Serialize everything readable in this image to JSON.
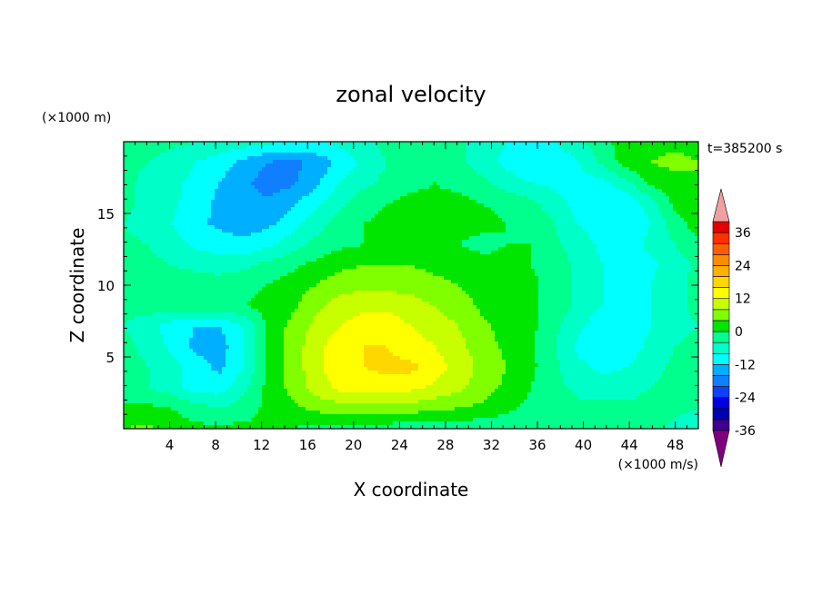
{
  "chart_data": {
    "type": "heatmap",
    "title": "zonal velocity",
    "xlabel": "X coordinate",
    "ylabel": "Z coordinate",
    "x_unit": "(×1000 m/s)",
    "y_unit": "(×1000 m)",
    "time_label": "t=385200 s",
    "xlim": [
      0,
      50
    ],
    "ylim": [
      0,
      20
    ],
    "x_ticks": [
      4,
      8,
      12,
      16,
      20,
      24,
      28,
      32,
      36,
      40,
      44,
      48
    ],
    "y_ticks": [
      5,
      10,
      15
    ],
    "colorbar": {
      "levels": [
        -40,
        -36,
        -32,
        -28,
        -24,
        -20,
        -16,
        -12,
        -8,
        -4,
        0,
        4,
        8,
        12,
        16,
        20,
        24,
        28,
        32,
        36,
        40
      ],
      "tick_labels": [
        36,
        24,
        12,
        0,
        -12,
        -24,
        -36
      ],
      "colors": [
        "#7f007f",
        "#3f008f",
        "#0000b0",
        "#0000e0",
        "#0f3fff",
        "#0f7fff",
        "#00afff",
        "#00ffff",
        "#00ffc8",
        "#00ff8c",
        "#00e600",
        "#7fff00",
        "#c8ff00",
        "#ffff00",
        "#ffd700",
        "#ffaf00",
        "#ff8c00",
        "#ff5f00",
        "#ff2f00",
        "#e60000",
        "#f0a0a0"
      ],
      "extend": "both"
    },
    "grid": false,
    "field": [
      [
        4,
        5,
        2,
        1,
        1,
        1,
        1,
        0,
        -1,
        -1,
        -2,
        -2,
        -3,
        -2,
        -2,
        -3,
        -3,
        -3,
        -3,
        -4,
        -3,
        -2,
        -3,
        -5,
        -6
      ],
      [
        1,
        1,
        0,
        -2,
        -4,
        -2,
        1,
        3,
        5,
        6,
        6,
        6,
        6,
        5,
        4,
        3,
        1,
        -1,
        -2,
        -3,
        -3,
        -3,
        -2,
        -3,
        -4
      ],
      [
        -2,
        -4,
        -6,
        -10,
        -10,
        -5,
        1,
        5,
        10,
        13,
        14,
        14,
        13,
        11,
        9,
        6,
        3,
        0,
        -3,
        -5,
        -6,
        -6,
        -4,
        -2,
        -3
      ],
      [
        -2,
        -4,
        -6,
        -10,
        -13,
        -8,
        1,
        5,
        11,
        14,
        16,
        17,
        17,
        14,
        10,
        7,
        4,
        1,
        -3,
        -7,
        -9,
        -8,
        -6,
        -3,
        -2
      ],
      [
        -3,
        -5,
        -9,
        -13,
        -14,
        -8,
        1,
        5,
        11,
        14,
        16,
        16,
        14,
        12,
        9,
        6,
        3,
        1,
        -4,
        -9,
        -11,
        -10,
        -7,
        -4,
        -3
      ],
      [
        -4,
        -6,
        -10,
        -12,
        -12,
        -8,
        1,
        5,
        9,
        12,
        14,
        14,
        12,
        10,
        8,
        5,
        2,
        1,
        -3,
        -7,
        -11,
        -11,
        -8,
        -5,
        -4
      ],
      [
        -3,
        -2,
        -2,
        -1,
        -1,
        0,
        1,
        3,
        7,
        10,
        11,
        11,
        10,
        8,
        6,
        3,
        2,
        1,
        -2,
        -5,
        -8,
        -10,
        -8,
        -5,
        -3
      ],
      [
        -1,
        -1,
        -1,
        -2,
        -2,
        -1,
        0,
        2,
        4,
        6,
        7,
        7,
        6,
        5,
        4,
        2,
        1,
        1,
        -2,
        -5,
        -8,
        -10,
        -8,
        -5,
        -3
      ],
      [
        -2,
        -3,
        -4,
        -5,
        -6,
        -5,
        -3,
        -1,
        1,
        3,
        4,
        4,
        4,
        3,
        2,
        1,
        1,
        0,
        -2,
        -5,
        -8,
        -10,
        -9,
        -6,
        -3
      ],
      [
        -3,
        -4,
        -6,
        -9,
        -10,
        -11,
        -9,
        -6,
        -3,
        -1,
        0,
        1,
        1,
        0,
        0,
        -1,
        0,
        0,
        -3,
        -6,
        -9,
        -10,
        -7,
        -4,
        -1
      ],
      [
        -4,
        -6,
        -8,
        -11,
        -13,
        -14,
        -13,
        -10,
        -6,
        -2,
        0,
        1,
        1,
        1,
        1,
        1,
        0,
        -1,
        -4,
        -8,
        -10,
        -11,
        -8,
        -2,
        2
      ],
      [
        -3,
        -5,
        -7,
        -10,
        -13,
        -15,
        -15,
        -13,
        -9,
        -5,
        -2,
        0,
        1,
        1,
        1,
        0,
        -1,
        -3,
        -6,
        -10,
        -12,
        -11,
        -6,
        1,
        3
      ],
      [
        -3,
        -5,
        -7,
        -9,
        -12,
        -15,
        -18,
        -17,
        -13,
        -8,
        -5,
        -3,
        -1,
        0,
        -1,
        -3,
        -6,
        -8,
        -9,
        -10,
        -9,
        -5,
        1,
        3,
        4
      ],
      [
        -3,
        -4,
        -6,
        -8,
        -10,
        -13,
        -16,
        -17,
        -15,
        -11,
        -7,
        -4,
        -2,
        -1,
        -3,
        -6,
        -9,
        -12,
        -11,
        -8,
        -3,
        2,
        4,
        5,
        4
      ],
      [
        -2,
        -2,
        -3,
        -4,
        -5,
        -6,
        -7,
        -8,
        -8,
        -7,
        -5,
        -3,
        -1,
        -1,
        -3,
        -6,
        -8,
        -9,
        -8,
        -5,
        -1,
        2,
        3,
        3,
        3
      ]
    ]
  }
}
